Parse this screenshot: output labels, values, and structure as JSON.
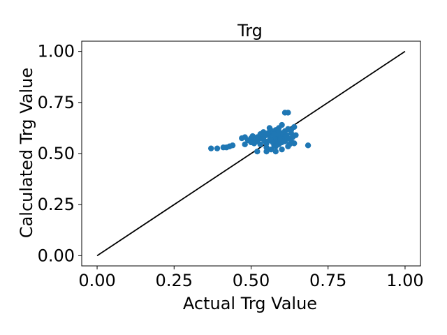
{
  "chart_data": {
    "type": "scatter",
    "title": "Trg",
    "xlabel": "Actual Trg Value",
    "ylabel": "Calculated Trg Value",
    "xlim": [
      -0.05,
      1.05
    ],
    "ylim": [
      -0.05,
      1.05
    ],
    "xticks": [
      0.0,
      0.25,
      0.5,
      0.75,
      1.0
    ],
    "yticks": [
      0.0,
      0.25,
      0.5,
      0.75,
      1.0
    ],
    "xtick_labels": [
      "0.00",
      "0.25",
      "0.50",
      "0.75",
      "1.00"
    ],
    "ytick_labels": [
      "0.00",
      "0.25",
      "0.50",
      "0.75",
      "1.00"
    ],
    "grid": false,
    "reference_line": {
      "x": [
        0.0,
        1.0
      ],
      "y": [
        0.0,
        1.0
      ],
      "color": "#000000"
    },
    "series": [
      {
        "name": "Trg",
        "color": "#1f77b4",
        "points": [
          [
            0.37,
            0.525
          ],
          [
            0.39,
            0.525
          ],
          [
            0.41,
            0.53
          ],
          [
            0.42,
            0.53
          ],
          [
            0.43,
            0.535
          ],
          [
            0.44,
            0.54
          ],
          [
            0.47,
            0.575
          ],
          [
            0.48,
            0.58
          ],
          [
            0.48,
            0.545
          ],
          [
            0.49,
            0.565
          ],
          [
            0.5,
            0.575
          ],
          [
            0.505,
            0.585
          ],
          [
            0.51,
            0.55
          ],
          [
            0.52,
            0.56
          ],
          [
            0.52,
            0.51
          ],
          [
            0.53,
            0.575
          ],
          [
            0.53,
            0.595
          ],
          [
            0.54,
            0.58
          ],
          [
            0.54,
            0.605
          ],
          [
            0.545,
            0.56
          ],
          [
            0.55,
            0.55
          ],
          [
            0.55,
            0.59
          ],
          [
            0.55,
            0.51
          ],
          [
            0.56,
            0.565
          ],
          [
            0.56,
            0.625
          ],
          [
            0.565,
            0.52
          ],
          [
            0.57,
            0.57
          ],
          [
            0.57,
            0.6
          ],
          [
            0.575,
            0.54
          ],
          [
            0.58,
            0.615
          ],
          [
            0.58,
            0.58
          ],
          [
            0.58,
            0.51
          ],
          [
            0.585,
            0.56
          ],
          [
            0.59,
            0.59
          ],
          [
            0.59,
            0.545
          ],
          [
            0.59,
            0.625
          ],
          [
            0.595,
            0.575
          ],
          [
            0.6,
            0.6
          ],
          [
            0.6,
            0.555
          ],
          [
            0.6,
            0.64
          ],
          [
            0.605,
            0.58
          ],
          [
            0.61,
            0.56
          ],
          [
            0.61,
            0.61
          ],
          [
            0.61,
            0.7
          ],
          [
            0.615,
            0.59
          ],
          [
            0.62,
            0.575
          ],
          [
            0.62,
            0.62
          ],
          [
            0.62,
            0.7
          ],
          [
            0.625,
            0.545
          ],
          [
            0.63,
            0.6
          ],
          [
            0.63,
            0.56
          ],
          [
            0.635,
            0.58
          ],
          [
            0.64,
            0.55
          ],
          [
            0.64,
            0.63
          ],
          [
            0.645,
            0.59
          ],
          [
            0.57,
            0.555
          ],
          [
            0.56,
            0.59
          ],
          [
            0.54,
            0.57
          ],
          [
            0.52,
            0.58
          ],
          [
            0.58,
            0.535
          ],
          [
            0.6,
            0.52
          ],
          [
            0.62,
            0.535
          ],
          [
            0.55,
            0.53
          ],
          [
            0.53,
            0.545
          ],
          [
            0.51,
            0.56
          ],
          [
            0.57,
            0.61
          ],
          [
            0.59,
            0.605
          ],
          [
            0.61,
            0.58
          ],
          [
            0.63,
            0.615
          ],
          [
            0.6,
            0.57
          ],
          [
            0.685,
            0.54
          ],
          [
            0.5,
            0.555
          ],
          [
            0.555,
            0.6
          ],
          [
            0.575,
            0.595
          ],
          [
            0.595,
            0.565
          ]
        ]
      }
    ]
  }
}
